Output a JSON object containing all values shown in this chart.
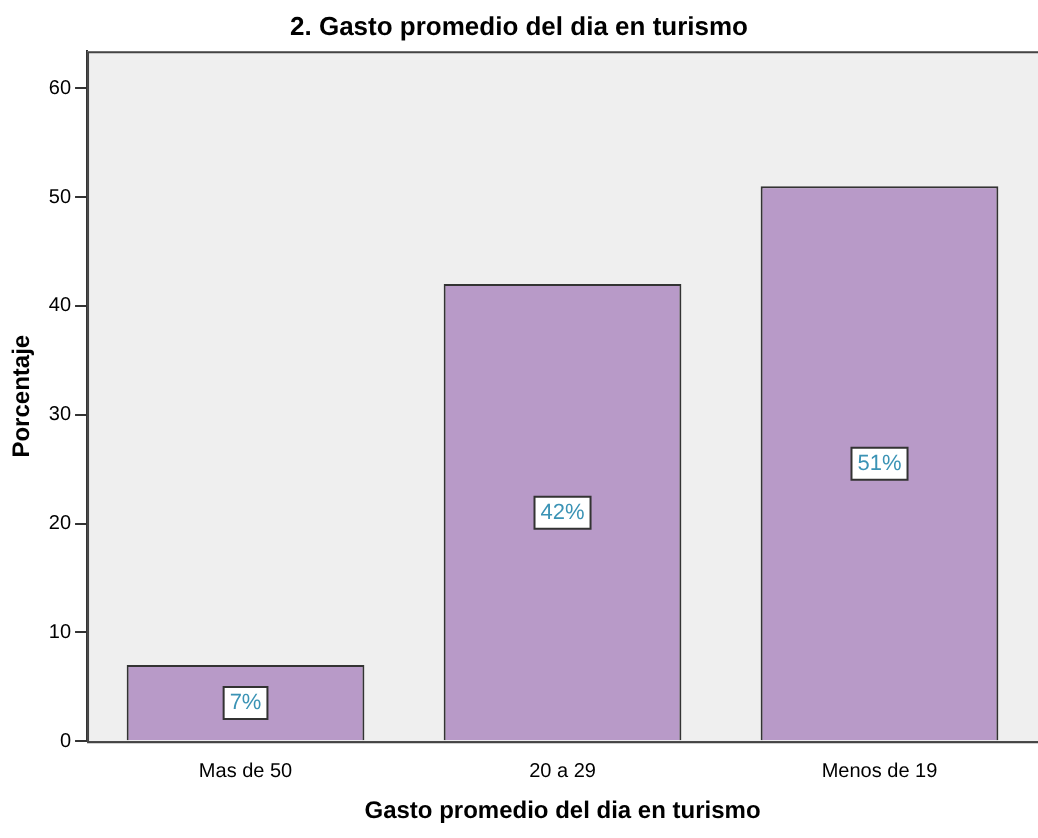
{
  "chart_data": {
    "type": "bar",
    "title": "2. Gasto promedio del dia en turismo",
    "xlabel": "Gasto promedio del dia en turismo",
    "ylabel": "Porcentaje",
    "categories": [
      "Mas de 50",
      "20 a 29",
      "Menos de 19"
    ],
    "values": [
      7,
      42,
      51
    ],
    "value_labels": [
      "7%",
      "42%",
      "51%"
    ],
    "color": "#b89ac8",
    "ylim": [
      0,
      63.4
    ],
    "yticks": [
      0,
      10,
      20,
      30,
      40,
      50,
      60
    ],
    "grid": false,
    "legend": false
  }
}
